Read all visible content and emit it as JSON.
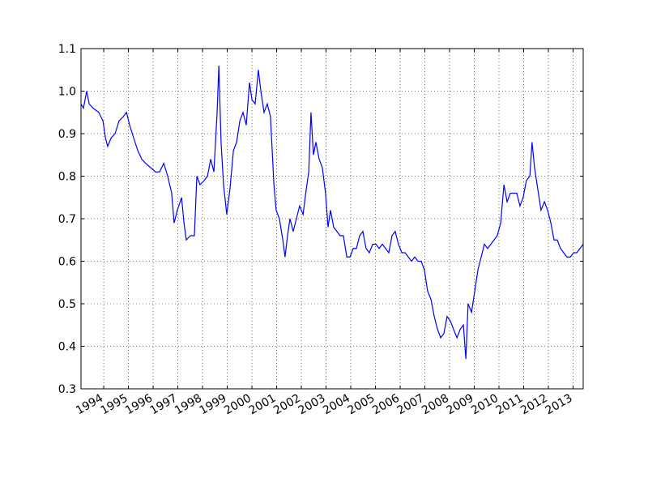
{
  "chart_data": {
    "type": "line",
    "color": "#0000ff",
    "grid": true,
    "x": [
      1993.08,
      1993.18,
      1993.31,
      1993.41,
      1993.57,
      1993.8,
      1993.97,
      1994.07,
      1994.16,
      1994.3,
      1994.46,
      1994.62,
      1994.79,
      1994.92,
      1995.05,
      1995.21,
      1995.38,
      1995.54,
      1995.7,
      1995.9,
      1996.1,
      1996.26,
      1996.43,
      1996.59,
      1996.75,
      1996.85,
      1996.98,
      1997.15,
      1997.25,
      1997.34,
      1997.51,
      1997.67,
      1997.77,
      1997.9,
      1998.07,
      1998.2,
      1998.33,
      1998.46,
      1998.59,
      1998.66,
      1998.75,
      1998.85,
      1998.98,
      1999.11,
      1999.25,
      1999.38,
      1999.51,
      1999.64,
      1999.77,
      1999.9,
      2000.0,
      2000.13,
      2000.26,
      2000.36,
      2000.49,
      2000.62,
      2000.75,
      2000.89,
      2000.98,
      2001.11,
      2001.25,
      2001.34,
      2001.44,
      2001.54,
      2001.67,
      2001.8,
      2001.93,
      2002.07,
      2002.2,
      2002.3,
      2002.39,
      2002.49,
      2002.59,
      2002.72,
      2002.85,
      2002.98,
      2003.08,
      2003.18,
      2003.31,
      2003.44,
      2003.57,
      2003.7,
      2003.84,
      2003.97,
      2004.1,
      2004.23,
      2004.36,
      2004.49,
      2004.62,
      2004.75,
      2004.89,
      2005.02,
      2005.15,
      2005.28,
      2005.41,
      2005.54,
      2005.67,
      2005.8,
      2005.93,
      2006.07,
      2006.2,
      2006.33,
      2006.46,
      2006.59,
      2006.72,
      2006.85,
      2006.98,
      2007.11,
      2007.25,
      2007.38,
      2007.51,
      2007.64,
      2007.77,
      2007.9,
      2008.03,
      2008.16,
      2008.3,
      2008.43,
      2008.56,
      2008.66,
      2008.75,
      2008.89,
      2009.02,
      2009.15,
      2009.28,
      2009.41,
      2009.54,
      2009.67,
      2009.8,
      2009.93,
      2010.07,
      2010.2,
      2010.33,
      2010.46,
      2010.59,
      2010.72,
      2010.85,
      2010.98,
      2011.11,
      2011.25,
      2011.34,
      2011.44,
      2011.57,
      2011.7,
      2011.84,
      2011.97,
      2012.1,
      2012.23,
      2012.36,
      2012.49,
      2012.62,
      2012.75,
      2012.89,
      2013.02,
      2013.15,
      2013.28,
      2013.41
    ],
    "values": [
      0.97,
      0.96,
      1.0,
      0.97,
      0.96,
      0.95,
      0.93,
      0.89,
      0.87,
      0.89,
      0.9,
      0.93,
      0.94,
      0.95,
      0.92,
      0.89,
      0.86,
      0.84,
      0.83,
      0.82,
      0.81,
      0.81,
      0.83,
      0.8,
      0.76,
      0.69,
      0.72,
      0.75,
      0.69,
      0.65,
      0.66,
      0.66,
      0.8,
      0.78,
      0.79,
      0.8,
      0.84,
      0.81,
      0.95,
      1.06,
      0.88,
      0.78,
      0.71,
      0.77,
      0.86,
      0.88,
      0.93,
      0.95,
      0.92,
      1.02,
      0.98,
      0.97,
      1.05,
      1.0,
      0.95,
      0.97,
      0.94,
      0.78,
      0.72,
      0.7,
      0.65,
      0.61,
      0.66,
      0.7,
      0.67,
      0.7,
      0.73,
      0.71,
      0.77,
      0.81,
      0.95,
      0.85,
      0.88,
      0.84,
      0.82,
      0.76,
      0.68,
      0.72,
      0.68,
      0.67,
      0.66,
      0.66,
      0.61,
      0.61,
      0.63,
      0.63,
      0.66,
      0.67,
      0.63,
      0.62,
      0.64,
      0.64,
      0.63,
      0.64,
      0.63,
      0.62,
      0.66,
      0.67,
      0.64,
      0.62,
      0.62,
      0.61,
      0.6,
      0.61,
      0.6,
      0.6,
      0.58,
      0.53,
      0.51,
      0.47,
      0.44,
      0.42,
      0.43,
      0.47,
      0.46,
      0.44,
      0.42,
      0.44,
      0.45,
      0.37,
      0.5,
      0.48,
      0.53,
      0.58,
      0.61,
      0.64,
      0.63,
      0.64,
      0.65,
      0.66,
      0.69,
      0.78,
      0.74,
      0.76,
      0.76,
      0.76,
      0.73,
      0.75,
      0.79,
      0.8,
      0.88,
      0.82,
      0.77,
      0.72,
      0.74,
      0.72,
      0.69,
      0.65,
      0.65,
      0.63,
      0.62,
      0.61,
      0.61,
      0.62,
      0.62,
      0.63,
      0.64
    ],
    "xlim": [
      1993.08,
      2013.41
    ],
    "xticks": [
      1994,
      1995,
      1996,
      1997,
      1998,
      1999,
      2000,
      2001,
      2002,
      2003,
      2004,
      2005,
      2006,
      2007,
      2008,
      2009,
      2010,
      2011,
      2012,
      2013
    ],
    "ylim": [
      0.3,
      1.1
    ],
    "yticks": [
      0.3,
      0.4,
      0.5,
      0.6,
      0.7,
      0.8,
      0.9,
      {
        "value": 1,
        "label": "1.0"
      },
      1.1
    ]
  }
}
